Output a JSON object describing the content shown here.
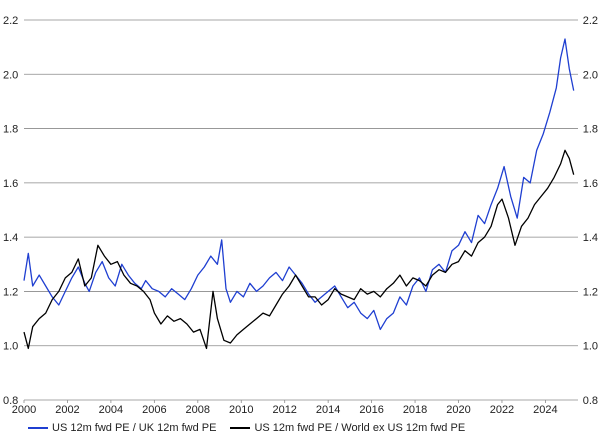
{
  "chart_data": {
    "type": "line",
    "title": "",
    "xlabel": "",
    "ylabel": "",
    "xlim": [
      2000,
      2025.5
    ],
    "ylim": [
      0.8,
      2.2
    ],
    "x_ticks": [
      "2000",
      "2002",
      "2004",
      "2006",
      "2008",
      "2010",
      "2012",
      "2014",
      "2016",
      "2018",
      "2020",
      "2022",
      "2024"
    ],
    "y_ticks": [
      "0.8",
      "1.0",
      "1.2",
      "1.4",
      "1.6",
      "1.8",
      "2.0",
      "2.2"
    ],
    "grid": "horizontal",
    "legend_position": "bottom-left",
    "series": [
      {
        "name": "US 12m fwd PE / UK 12m fwd PE",
        "color": "#1f3fd1",
        "points": [
          [
            2000.0,
            1.24
          ],
          [
            2000.2,
            1.34
          ],
          [
            2000.4,
            1.22
          ],
          [
            2000.7,
            1.26
          ],
          [
            2001.0,
            1.22
          ],
          [
            2001.3,
            1.18
          ],
          [
            2001.6,
            1.15
          ],
          [
            2001.9,
            1.2
          ],
          [
            2002.2,
            1.25
          ],
          [
            2002.5,
            1.29
          ],
          [
            2002.8,
            1.23
          ],
          [
            2003.0,
            1.2
          ],
          [
            2003.3,
            1.27
          ],
          [
            2003.6,
            1.31
          ],
          [
            2003.9,
            1.25
          ],
          [
            2004.2,
            1.22
          ],
          [
            2004.5,
            1.3
          ],
          [
            2004.8,
            1.26
          ],
          [
            2005.1,
            1.23
          ],
          [
            2005.4,
            1.21
          ],
          [
            2005.6,
            1.24
          ],
          [
            2005.9,
            1.21
          ],
          [
            2006.2,
            1.2
          ],
          [
            2006.5,
            1.18
          ],
          [
            2006.8,
            1.21
          ],
          [
            2007.1,
            1.19
          ],
          [
            2007.4,
            1.17
          ],
          [
            2007.7,
            1.21
          ],
          [
            2008.0,
            1.26
          ],
          [
            2008.3,
            1.29
          ],
          [
            2008.6,
            1.33
          ],
          [
            2008.9,
            1.3
          ],
          [
            2009.1,
            1.39
          ],
          [
            2009.3,
            1.21
          ],
          [
            2009.5,
            1.16
          ],
          [
            2009.8,
            1.2
          ],
          [
            2010.1,
            1.18
          ],
          [
            2010.4,
            1.23
          ],
          [
            2010.7,
            1.2
          ],
          [
            2011.0,
            1.22
          ],
          [
            2011.3,
            1.25
          ],
          [
            2011.6,
            1.27
          ],
          [
            2011.9,
            1.24
          ],
          [
            2012.2,
            1.29
          ],
          [
            2012.5,
            1.26
          ],
          [
            2012.8,
            1.23
          ],
          [
            2013.1,
            1.19
          ],
          [
            2013.4,
            1.16
          ],
          [
            2013.7,
            1.18
          ],
          [
            2014.0,
            1.2
          ],
          [
            2014.3,
            1.22
          ],
          [
            2014.6,
            1.18
          ],
          [
            2014.9,
            1.14
          ],
          [
            2015.2,
            1.16
          ],
          [
            2015.5,
            1.12
          ],
          [
            2015.8,
            1.1
          ],
          [
            2016.1,
            1.13
          ],
          [
            2016.4,
            1.06
          ],
          [
            2016.7,
            1.1
          ],
          [
            2017.0,
            1.12
          ],
          [
            2017.3,
            1.18
          ],
          [
            2017.6,
            1.15
          ],
          [
            2017.9,
            1.22
          ],
          [
            2018.2,
            1.25
          ],
          [
            2018.5,
            1.2
          ],
          [
            2018.8,
            1.28
          ],
          [
            2019.1,
            1.3
          ],
          [
            2019.4,
            1.27
          ],
          [
            2019.7,
            1.35
          ],
          [
            2020.0,
            1.37
          ],
          [
            2020.3,
            1.42
          ],
          [
            2020.6,
            1.38
          ],
          [
            2020.9,
            1.48
          ],
          [
            2021.2,
            1.45
          ],
          [
            2021.5,
            1.52
          ],
          [
            2021.8,
            1.58
          ],
          [
            2022.1,
            1.66
          ],
          [
            2022.4,
            1.55
          ],
          [
            2022.7,
            1.47
          ],
          [
            2023.0,
            1.62
          ],
          [
            2023.3,
            1.6
          ],
          [
            2023.6,
            1.72
          ],
          [
            2023.9,
            1.78
          ],
          [
            2024.2,
            1.86
          ],
          [
            2024.5,
            1.95
          ],
          [
            2024.7,
            2.06
          ],
          [
            2024.9,
            2.13
          ],
          [
            2025.1,
            2.02
          ],
          [
            2025.3,
            1.94
          ]
        ]
      },
      {
        "name": "US 12m fwd PE / World ex US 12m fwd PE",
        "color": "#000000",
        "points": [
          [
            2000.0,
            1.05
          ],
          [
            2000.2,
            0.99
          ],
          [
            2000.4,
            1.07
          ],
          [
            2000.7,
            1.1
          ],
          [
            2001.0,
            1.12
          ],
          [
            2001.3,
            1.17
          ],
          [
            2001.6,
            1.2
          ],
          [
            2001.9,
            1.25
          ],
          [
            2002.2,
            1.27
          ],
          [
            2002.5,
            1.32
          ],
          [
            2002.8,
            1.22
          ],
          [
            2003.1,
            1.25
          ],
          [
            2003.4,
            1.37
          ],
          [
            2003.7,
            1.33
          ],
          [
            2004.0,
            1.3
          ],
          [
            2004.3,
            1.31
          ],
          [
            2004.6,
            1.26
          ],
          [
            2004.9,
            1.23
          ],
          [
            2005.2,
            1.22
          ],
          [
            2005.5,
            1.2
          ],
          [
            2005.8,
            1.17
          ],
          [
            2006.0,
            1.12
          ],
          [
            2006.3,
            1.08
          ],
          [
            2006.6,
            1.11
          ],
          [
            2006.9,
            1.09
          ],
          [
            2007.2,
            1.1
          ],
          [
            2007.5,
            1.08
          ],
          [
            2007.8,
            1.05
          ],
          [
            2008.1,
            1.06
          ],
          [
            2008.4,
            0.99
          ],
          [
            2008.7,
            1.2
          ],
          [
            2008.9,
            1.1
          ],
          [
            2009.2,
            1.02
          ],
          [
            2009.5,
            1.01
          ],
          [
            2009.8,
            1.04
          ],
          [
            2010.1,
            1.06
          ],
          [
            2010.4,
            1.08
          ],
          [
            2010.7,
            1.1
          ],
          [
            2011.0,
            1.12
          ],
          [
            2011.3,
            1.11
          ],
          [
            2011.6,
            1.15
          ],
          [
            2011.9,
            1.19
          ],
          [
            2012.2,
            1.22
          ],
          [
            2012.5,
            1.26
          ],
          [
            2012.8,
            1.22
          ],
          [
            2013.1,
            1.18
          ],
          [
            2013.4,
            1.18
          ],
          [
            2013.7,
            1.15
          ],
          [
            2014.0,
            1.17
          ],
          [
            2014.3,
            1.21
          ],
          [
            2014.6,
            1.19
          ],
          [
            2014.9,
            1.18
          ],
          [
            2015.2,
            1.17
          ],
          [
            2015.5,
            1.21
          ],
          [
            2015.8,
            1.19
          ],
          [
            2016.1,
            1.2
          ],
          [
            2016.4,
            1.18
          ],
          [
            2016.7,
            1.21
          ],
          [
            2017.0,
            1.23
          ],
          [
            2017.3,
            1.26
          ],
          [
            2017.6,
            1.22
          ],
          [
            2017.9,
            1.25
          ],
          [
            2018.2,
            1.24
          ],
          [
            2018.5,
            1.22
          ],
          [
            2018.8,
            1.26
          ],
          [
            2019.1,
            1.28
          ],
          [
            2019.4,
            1.27
          ],
          [
            2019.7,
            1.3
          ],
          [
            2020.0,
            1.31
          ],
          [
            2020.3,
            1.35
          ],
          [
            2020.6,
            1.33
          ],
          [
            2020.9,
            1.38
          ],
          [
            2021.2,
            1.4
          ],
          [
            2021.5,
            1.44
          ],
          [
            2021.8,
            1.52
          ],
          [
            2022.0,
            1.54
          ],
          [
            2022.3,
            1.47
          ],
          [
            2022.6,
            1.37
          ],
          [
            2022.9,
            1.44
          ],
          [
            2023.2,
            1.47
          ],
          [
            2023.5,
            1.52
          ],
          [
            2023.8,
            1.55
          ],
          [
            2024.1,
            1.58
          ],
          [
            2024.4,
            1.62
          ],
          [
            2024.7,
            1.67
          ],
          [
            2024.9,
            1.72
          ],
          [
            2025.1,
            1.69
          ],
          [
            2025.3,
            1.63
          ]
        ]
      }
    ]
  }
}
